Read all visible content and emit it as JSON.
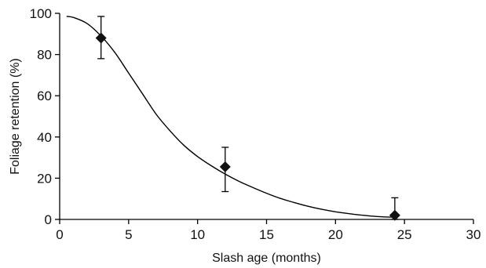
{
  "chart_data": {
    "type": "scatter",
    "xlabel": "Slash age (months)",
    "ylabel": "Foliage retention (%)",
    "xlim": [
      0,
      30
    ],
    "ylim": [
      0,
      100
    ],
    "x_ticks": [
      0,
      5,
      10,
      15,
      20,
      25,
      30
    ],
    "y_ticks": [
      0,
      20,
      40,
      60,
      80,
      100
    ],
    "x_tick_labels": [
      "0",
      "5",
      "10",
      "15",
      "20",
      "25",
      "30"
    ],
    "y_tick_labels": [
      "0",
      "20",
      "40",
      "60",
      "80",
      "100"
    ],
    "grid": false,
    "series": [
      {
        "marker": "diamond",
        "color": "#111111",
        "x": [
          3,
          12,
          24.3
        ],
        "y": [
          88,
          25.5,
          2
        ],
        "error_low": [
          10,
          12,
          2
        ],
        "error_high": [
          10.5,
          9.5,
          8.5
        ]
      }
    ],
    "fitted_curve": {
      "x": [
        0.5,
        1,
        2,
        3,
        4,
        5,
        6,
        7,
        8,
        9,
        10,
        11,
        12,
        13,
        14,
        15,
        16,
        17,
        18,
        19,
        20,
        21,
        22,
        23,
        24,
        24.3
      ],
      "y": [
        98.5,
        98,
        95,
        89,
        81,
        71,
        61,
        51,
        43,
        36,
        30.5,
        26,
        22,
        18.5,
        15.5,
        12.7,
        10.2,
        8.2,
        6.4,
        4.9,
        3.7,
        2.8,
        2,
        1.4,
        1.1,
        1
      ]
    }
  }
}
